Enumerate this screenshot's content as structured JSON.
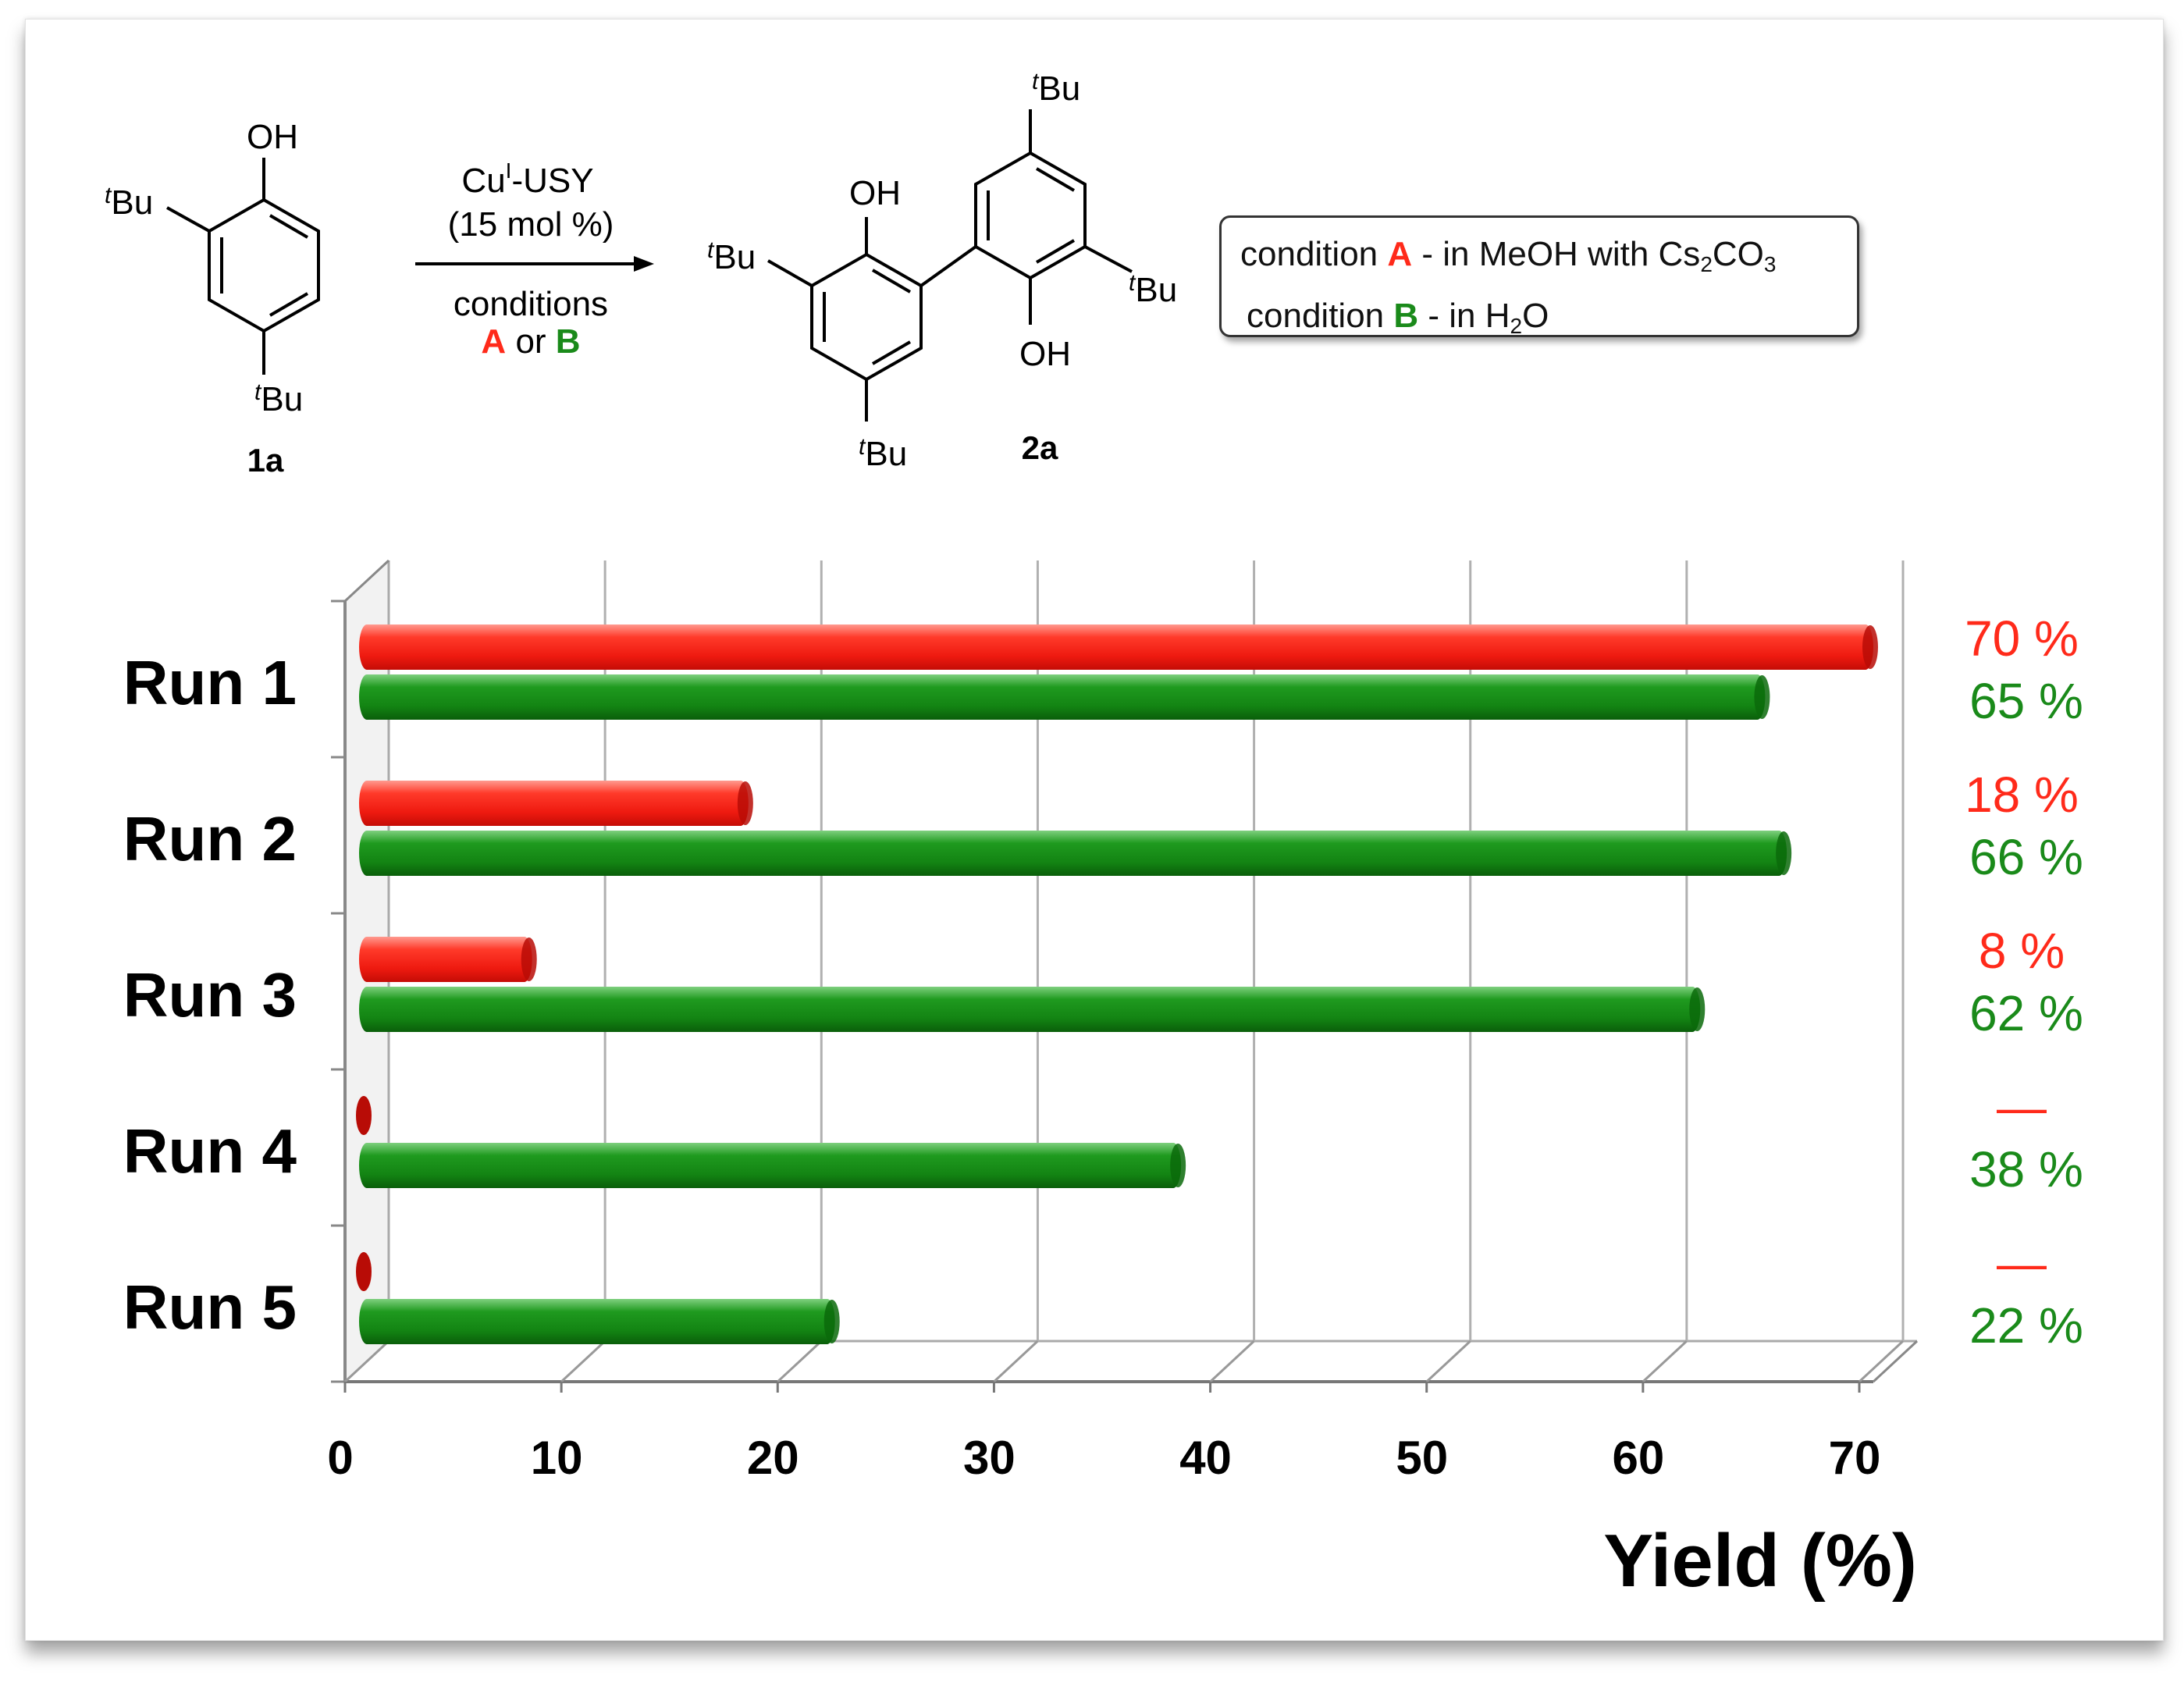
{
  "scheme": {
    "reactant": {
      "substituent_oh": "OH",
      "substituent_tbu": "Bu",
      "tbu_prefix": "t",
      "label": "1a"
    },
    "product": {
      "substituent_oh": "OH",
      "substituent_tbu": "Bu",
      "tbu_prefix": "t",
      "label": "2a"
    },
    "arrow": {
      "catalyst_pre": "Cu",
      "catalyst_sup": "I",
      "catalyst_post": "-USY",
      "loading": "(15 mol %)",
      "conditions_word": "conditions",
      "cond_a": "A",
      "or_word": "or",
      "cond_b": "B"
    }
  },
  "legend": {
    "line_a": {
      "prefix": "condition ",
      "tag": "A",
      "text": " - in MeOH with Cs",
      "sub": "2",
      "text2": "CO",
      "sub2": "3"
    },
    "line_b": {
      "prefix": "condition ",
      "tag": "B",
      "text": " - in H",
      "sub": "2",
      "text2": "O"
    }
  },
  "colors": {
    "condition_a": "#ff2a1a",
    "condition_b": "#1a8a1a"
  },
  "chart_data": {
    "type": "bar",
    "orientation": "horizontal",
    "categories": [
      "Run 1",
      "Run 2",
      "Run 3",
      "Run 4",
      "Run 5"
    ],
    "series": [
      {
        "name": "A",
        "values": [
          70,
          18,
          8,
          0,
          0
        ]
      },
      {
        "name": "B",
        "values": [
          65,
          66,
          62,
          38,
          22
        ]
      }
    ],
    "value_labels": {
      "A": [
        "70 %",
        "18 %",
        "8 %",
        "—",
        "—"
      ],
      "B": [
        "65 %",
        "66 %",
        "62 %",
        "38 %",
        "22 %"
      ]
    },
    "xlabel": "Yield (%)",
    "xlim": [
      0,
      70
    ],
    "xticks": [
      0,
      10,
      20,
      30,
      40,
      50,
      60,
      70
    ],
    "grid": true
  }
}
